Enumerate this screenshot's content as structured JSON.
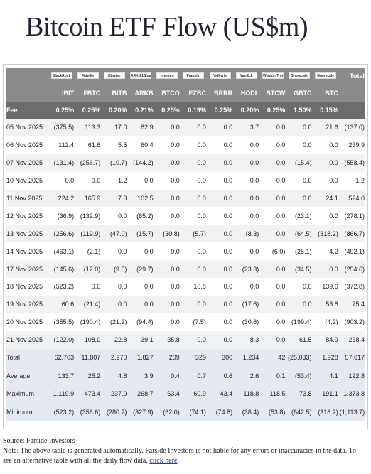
{
  "title": "Bitcoin ETF Flow (US$m)",
  "issuer_logos": [
    "BlackRock",
    "Fidelity",
    "Bitwise",
    "ARK 21Shares",
    "Invesco",
    "Franklin",
    "Valkyrie",
    "VanEck",
    "WisdomTree",
    "Grayscale",
    "Grayscale",
    ""
  ],
  "columns": [
    "",
    "IBIT",
    "FBTC",
    "BITB",
    "ARKB",
    "BTCO",
    "EZBC",
    "BRRR",
    "HODL",
    "BTCW",
    "GBTC",
    "BTC",
    "Total"
  ],
  "fee_row": [
    "Fee",
    "0.25%",
    "0.25%",
    "0.20%",
    "0.21%",
    "0.25%",
    "0.19%",
    "0.25%",
    "0.20%",
    "0.25%",
    "1.50%",
    "0.15%",
    ""
  ],
  "rows": [
    [
      "05 Nov 2025",
      "(375.5)",
      "113.3",
      "17.0",
      "82.9",
      "0.0",
      "0.0",
      "0.0",
      "3.7",
      "0.0",
      "0.0",
      "21.6",
      "(137.0)"
    ],
    [
      "06 Nov 2025",
      "112.4",
      "61.6",
      "5.5",
      "60.4",
      "0.0",
      "0.0",
      "0.0",
      "0.0",
      "0.0",
      "0.0",
      "0.0",
      "239.9"
    ],
    [
      "07 Nov 2025",
      "(131.4)",
      "(256.7)",
      "(10.7)",
      "(144.2)",
      "0.0",
      "0.0",
      "0.0",
      "0.0",
      "0.0",
      "(15.4)",
      "0.0",
      "(558.4)"
    ],
    [
      "10 Nov 2025",
      "0.0",
      "0.0",
      "1.2",
      "0.0",
      "0.0",
      "0.0",
      "0.0",
      "0.0",
      "0.0",
      "0.0",
      "0.0",
      "1.2"
    ],
    [
      "11 Nov 2025",
      "224.2",
      "165.9",
      "7.3",
      "102.5",
      "0.0",
      "0.0",
      "0.0",
      "0.0",
      "0.0",
      "0.0",
      "24.1",
      "524.0"
    ],
    [
      "12 Nov 2025",
      "(36.9)",
      "(132.9)",
      "0.0",
      "(85.2)",
      "0.0",
      "0.0",
      "0.0",
      "0.0",
      "0.0",
      "(23.1)",
      "0.0",
      "(278.1)"
    ],
    [
      "13 Nov 2025",
      "(256.6)",
      "(119.9)",
      "(47.0)",
      "(15.7)",
      "(30.8)",
      "(5.7)",
      "0.0",
      "(8.3)",
      "0.0",
      "(64.5)",
      "(318.2)",
      "(866.7)"
    ],
    [
      "14 Nov 2025",
      "(463.1)",
      "(2.1)",
      "0.0",
      "0.0",
      "0.0",
      "0.0",
      "0.0",
      "0.0",
      "(6.0)",
      "(25.1)",
      "4.2",
      "(492.1)"
    ],
    [
      "17 Nov 2025",
      "(145.6)",
      "(12.0)",
      "(9.5)",
      "(29.7)",
      "0.0",
      "0.0",
      "0.0",
      "(23.3)",
      "0.0",
      "(34.5)",
      "0.0",
      "(254.6)"
    ],
    [
      "18 Nov 2025",
      "(523.2)",
      "0.0",
      "0.0",
      "0.0",
      "0.0",
      "10.8",
      "0.0",
      "0.0",
      "0.0",
      "0.0",
      "139.6",
      "(372.8)"
    ],
    [
      "19 Nov 2025",
      "60.6",
      "(21.4)",
      "0.0",
      "0.0",
      "0.0",
      "0.0",
      "0.0",
      "(17.6)",
      "0.0",
      "0.0",
      "53.8",
      "75.4"
    ],
    [
      "20 Nov 2025",
      "(355.5)",
      "(190.4)",
      "(21.2)",
      "(94.4)",
      "0.0",
      "(7.5)",
      "0.0",
      "(30.6)",
      "0.0",
      "(199.4)",
      "(4.2)",
      "(903.2)"
    ],
    [
      "21 Nov 2025",
      "(122.0)",
      "108.0",
      "22.8",
      "39.1",
      "35.8",
      "0.0",
      "0.0",
      "8.3",
      "0.0",
      "61.5",
      "84.9",
      "238.4"
    ]
  ],
  "summary": [
    [
      "Total",
      "62,703",
      "11,807",
      "2,270",
      "1,827",
      "209",
      "329",
      "300",
      "1,234",
      "42",
      "(25,033)",
      "1,928",
      "57,617"
    ],
    [
      "Average",
      "133.7",
      "25.2",
      "4.8",
      "3.9",
      "0.4",
      "0.7",
      "0.6",
      "2.6",
      "0.1",
      "(53.4)",
      "4.1",
      "122.8"
    ],
    [
      "Maximum",
      "1,119.9",
      "473.4",
      "237.9",
      "268.7",
      "63.4",
      "60.9",
      "43.4",
      "118.8",
      "118.5",
      "73.8",
      "191.1",
      "1,373.8"
    ],
    [
      "Minimum",
      "(523.2)",
      "(356.6)",
      "(280.7)",
      "(327.9)",
      "(62.0)",
      "(74.1)",
      "(74.8)",
      "(38.4)",
      "(53.8)",
      "(642.5)",
      "(318.2)",
      "(1,113.7)"
    ]
  ],
  "footer": {
    "source": "Source: Farside Investors",
    "note": "Note: The above table is generated automatically. Farside Investors is not liable for any errors or inaccuracies in the data. To see an alternative table with all the daily flow data,",
    "link": "click here",
    "end": "."
  },
  "colors": {
    "negative": "#d8343b",
    "header": "#8a8a8a",
    "fee_row": "#6c6c6c",
    "link": "#1a3fb0"
  }
}
